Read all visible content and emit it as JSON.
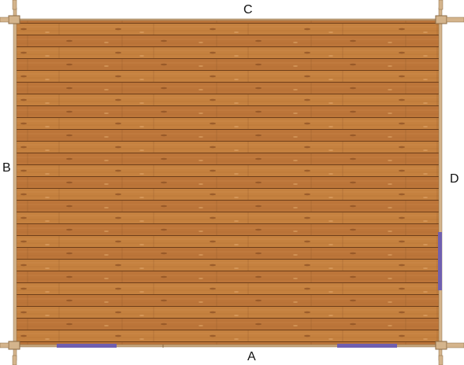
{
  "labels": {
    "top": "C",
    "left": "B",
    "right": "D",
    "bottom": "A"
  },
  "colors": {
    "wood_base": "#bf7a3e",
    "wood_dark_line": "#6e3e1a",
    "wood_light_line": "#d99a5c",
    "beam": "#d4b48c",
    "beam_edge": "#8a6a44",
    "opening": "#6f5fb0",
    "label": "#111111"
  }
}
